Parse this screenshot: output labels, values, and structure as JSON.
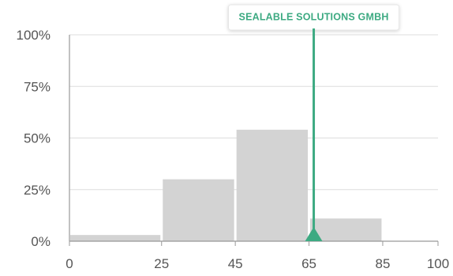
{
  "chart_data": {
    "type": "bar",
    "bins": [
      {
        "start": 0,
        "end": 25,
        "value": 3
      },
      {
        "start": 25,
        "end": 45,
        "value": 30
      },
      {
        "start": 45,
        "end": 65,
        "value": 54
      },
      {
        "start": 65,
        "end": 85,
        "value": 11
      },
      {
        "start": 85,
        "end": 100,
        "value": 0
      }
    ],
    "x_ticks": [
      "0",
      "25",
      "45",
      "65",
      "85",
      "100"
    ],
    "x_tick_values": [
      0,
      25,
      45,
      65,
      85,
      100
    ],
    "y_ticks": [
      "0%",
      "25%",
      "50%",
      "75%",
      "100%"
    ],
    "y_tick_values": [
      0,
      25,
      50,
      75,
      100
    ],
    "xlim": [
      0,
      100
    ],
    "ylim": [
      0,
      100
    ],
    "grid": true,
    "marker": {
      "label": "SEALABLE SOLUTIONS GMBH",
      "x": 65,
      "color": "#3daa82"
    },
    "bar_color": "#d3d3d3",
    "grid_color": "#dddddd",
    "axis_color": "#999999"
  }
}
